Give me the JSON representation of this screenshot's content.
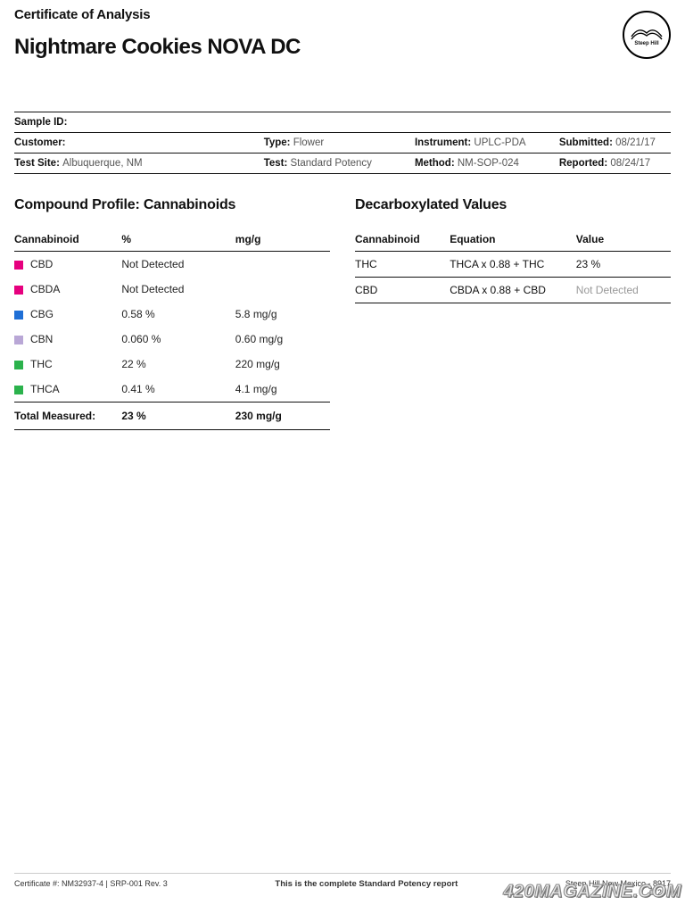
{
  "header": {
    "doc_type": "Certificate of Analysis",
    "title": "Nightmare Cookies NOVA DC",
    "logo_text": "Steep Hill"
  },
  "meta": {
    "rows": [
      [
        {
          "label": "Sample ID:",
          "value": ""
        },
        {
          "label": "",
          "value": ""
        },
        {
          "label": "",
          "value": ""
        },
        {
          "label": "",
          "value": ""
        }
      ],
      [
        {
          "label": "Customer:",
          "value": ""
        },
        {
          "label": "Type:",
          "value": "Flower"
        },
        {
          "label": "Instrument:",
          "value": "UPLC-PDA"
        },
        {
          "label": "Submitted:",
          "value": "08/21/17"
        }
      ],
      [
        {
          "label": "Test Site:",
          "value": "Albuquerque, NM"
        },
        {
          "label": "Test:",
          "value": "Standard Potency"
        },
        {
          "label": "Method:",
          "value": "NM-SOP-024"
        },
        {
          "label": "Reported:",
          "value": "08/24/17"
        }
      ]
    ]
  },
  "compound": {
    "section_title": "Compound Profile: Cannabinoids",
    "columns": [
      "Cannabinoid",
      "%",
      "mg/g"
    ],
    "rows": [
      {
        "swatch": "#e6007e",
        "name": "CBD",
        "pct": "Not Detected",
        "mgg": "",
        "nd": true
      },
      {
        "swatch": "#e6007e",
        "name": "CBDA",
        "pct": "Not Detected",
        "mgg": "",
        "nd": true
      },
      {
        "swatch": "#1f6fd6",
        "name": "CBG",
        "pct": "0.58 %",
        "mgg": "5.8 mg/g",
        "nd": false
      },
      {
        "swatch": "#b9a7d6",
        "name": "CBN",
        "pct": "0.060 %",
        "mgg": "0.60 mg/g",
        "nd": false
      },
      {
        "swatch": "#2bb24c",
        "name": "THC",
        "pct": "22 %",
        "mgg": "220 mg/g",
        "nd": false
      },
      {
        "swatch": "#2bb24c",
        "name": "THCA",
        "pct": "0.41 %",
        "mgg": "4.1 mg/g",
        "nd": false
      }
    ],
    "total": {
      "label": "Total Measured:",
      "pct": "23 %",
      "mgg": "230 mg/g"
    }
  },
  "decarb": {
    "section_title": "Decarboxylated Values",
    "columns": [
      "Cannabinoid",
      "Equation",
      "Value"
    ],
    "rows": [
      {
        "name": "THC",
        "eq": "THCA x 0.88 + THC",
        "value": "23 %",
        "nd": false
      },
      {
        "name": "CBD",
        "eq": "CBDA x 0.88 + CBD",
        "value": "Not Detected",
        "nd": true
      }
    ]
  },
  "footer": {
    "left": "Certificate #: NM32937-4 | SRP-001 Rev. 3",
    "center": "This is the complete Standard Potency report",
    "right_line1": "Steep Hill New Mexico - 8917",
    "right_line2": "© 201"
  },
  "watermark": "420MAGAZINE.COM"
}
